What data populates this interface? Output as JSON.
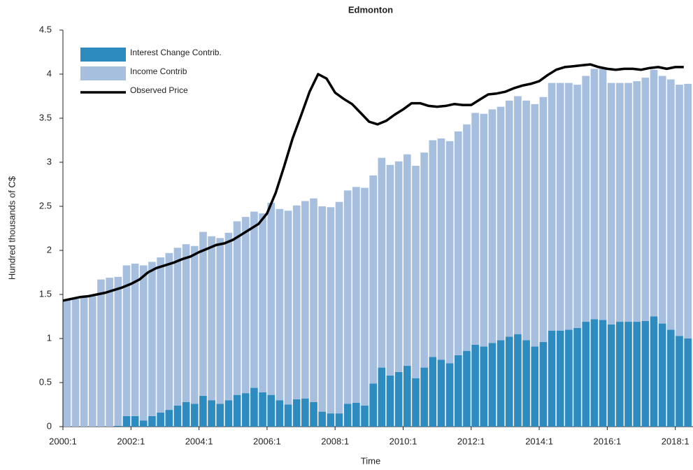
{
  "chart_data": {
    "type": "bar",
    "stacked": true,
    "title": "Edmonton",
    "x_label": "Time",
    "y_label": "Hundred thousands of C$",
    "categories": [
      "2000:1",
      null,
      null,
      null,
      null,
      null,
      null,
      null,
      "2002:1",
      null,
      null,
      null,
      null,
      null,
      null,
      null,
      "2004:1",
      null,
      null,
      null,
      null,
      null,
      null,
      null,
      "2006:1",
      null,
      null,
      null,
      null,
      null,
      null,
      null,
      "2008:1",
      null,
      null,
      null,
      null,
      null,
      null,
      null,
      "2010:1",
      null,
      null,
      null,
      null,
      null,
      null,
      null,
      "2012:1",
      null,
      null,
      null,
      null,
      null,
      null,
      null,
      "2014:1",
      null,
      null,
      null,
      null,
      null,
      null,
      null,
      "2016:1",
      null,
      null,
      null,
      null,
      null,
      null,
      null,
      "2018:1",
      null
    ],
    "series": [
      {
        "name": "Interest Change Contrib.",
        "color": "#2e8bc0",
        "values": [
          0,
          0,
          0,
          0,
          0,
          0,
          0.01,
          0.12,
          0.12,
          0.07,
          0.12,
          0.16,
          0.19,
          0.24,
          0.28,
          0.26,
          0.35,
          0.3,
          0.26,
          0.3,
          0.36,
          0.38,
          0.44,
          0.39,
          0.36,
          0.3,
          0.25,
          0.31,
          0.32,
          0.28,
          0.17,
          0.15,
          0.15,
          0.26,
          0.27,
          0.24,
          0.49,
          0.67,
          0.58,
          0.62,
          0.69,
          0.55,
          0.67,
          0.79,
          0.76,
          0.72,
          0.81,
          0.86,
          0.93,
          0.91,
          0.95,
          0.98,
          1.02,
          1.05,
          0.98,
          0.91,
          0.96,
          1.09,
          1.09,
          1.1,
          1.12,
          1.19,
          1.22,
          1.21,
          1.16,
          1.19,
          1.19,
          1.19,
          1.2,
          1.25,
          1.17,
          1.1,
          1.03,
          1.0
        ]
      },
      {
        "name": "Income Contrib",
        "color": "#a7bfdf",
        "values": [
          1.44,
          1.45,
          1.47,
          1.48,
          1.67,
          1.69,
          1.69,
          1.71,
          1.73,
          1.76,
          1.75,
          1.76,
          1.78,
          1.79,
          1.79,
          1.79,
          1.86,
          1.86,
          1.88,
          1.9,
          1.97,
          2.0,
          2.0,
          2.03,
          2.18,
          2.17,
          2.2,
          2.2,
          2.24,
          2.31,
          2.33,
          2.34,
          2.4,
          2.42,
          2.45,
          2.47,
          2.36,
          2.38,
          2.39,
          2.39,
          2.4,
          2.41,
          2.44,
          2.46,
          2.51,
          2.52,
          2.54,
          2.57,
          2.63,
          2.64,
          2.65,
          2.65,
          2.68,
          2.7,
          2.72,
          2.75,
          2.78,
          2.81,
          2.81,
          2.8,
          2.76,
          2.79,
          2.84,
          2.85,
          2.74,
          2.71,
          2.71,
          2.73,
          2.76,
          2.8,
          2.81,
          2.84,
          2.85,
          2.89
        ]
      },
      {
        "name": "Observed Price",
        "type": "line",
        "color": "#000000",
        "values": [
          1.43,
          1.45,
          1.47,
          1.48,
          1.5,
          1.52,
          1.55,
          1.58,
          1.62,
          1.67,
          1.75,
          1.8,
          1.83,
          1.86,
          1.9,
          1.93,
          1.98,
          2.02,
          2.06,
          2.08,
          2.12,
          2.18,
          2.24,
          2.3,
          2.42,
          2.65,
          2.95,
          3.27,
          3.53,
          3.8,
          4.0,
          3.95,
          3.79,
          3.72,
          3.66,
          3.56,
          3.46,
          3.43,
          3.47,
          3.54,
          3.6,
          3.67,
          3.67,
          3.64,
          3.63,
          3.64,
          3.66,
          3.65,
          3.65,
          3.71,
          3.77,
          3.78,
          3.8,
          3.84,
          3.87,
          3.89,
          3.92,
          3.99,
          4.05,
          4.08,
          4.09,
          4.1,
          4.11,
          4.08,
          4.06,
          4.05,
          4.06,
          4.06,
          4.05,
          4.07,
          4.08,
          4.06,
          4.08,
          4.08
        ]
      }
    ],
    "ylim": [
      0,
      4.5
    ],
    "yticks": [
      0,
      0.5,
      1,
      1.5,
      2,
      2.5,
      3,
      3.5,
      4,
      4.5
    ],
    "grid": false,
    "legend": "upper left"
  }
}
